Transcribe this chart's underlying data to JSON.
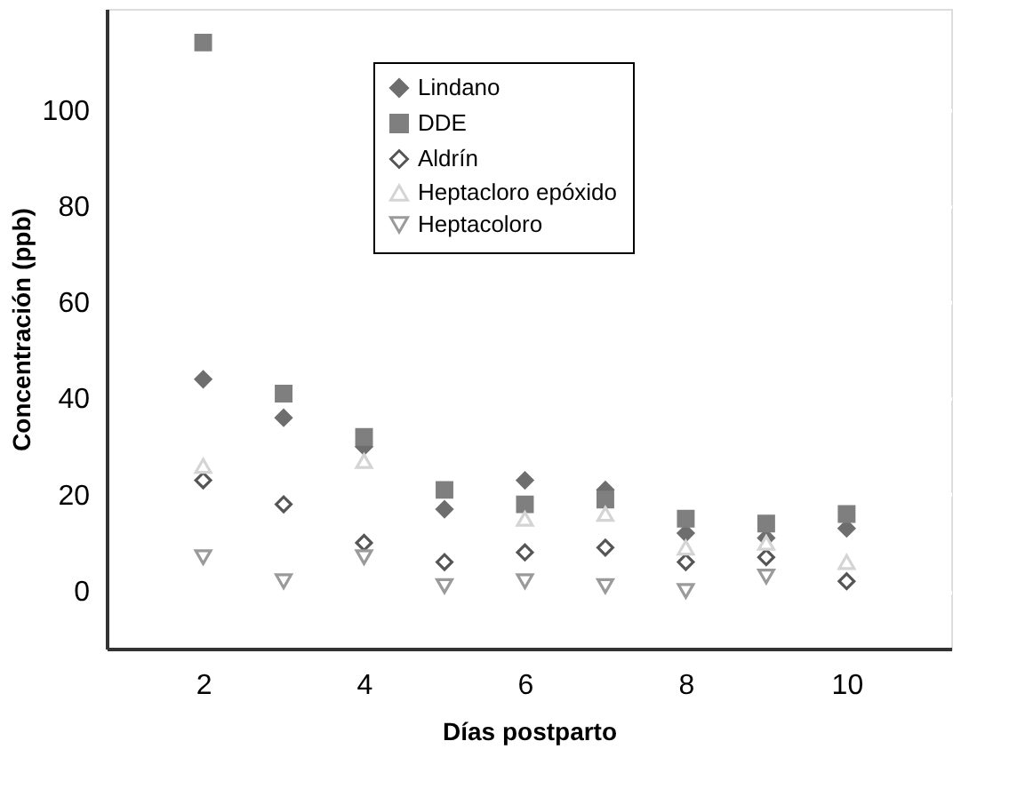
{
  "chart_data": {
    "type": "scatter",
    "xlabel": "Días postparto",
    "ylabel": "Concentración (ppb)",
    "x": [
      2,
      3,
      4,
      5,
      6,
      7,
      8,
      9,
      10
    ],
    "xlim": [
      0.8,
      11.3
    ],
    "xticks": [
      2,
      4,
      6,
      8,
      10
    ],
    "ylim": [
      -12,
      121
    ],
    "yticks": [
      0,
      20,
      40,
      60,
      80,
      100
    ],
    "grid": "y",
    "legend": "top",
    "series": [
      {
        "name": "Lindano",
        "color": "#6e6e6e",
        "marker": "diamond",
        "values": [
          44,
          36,
          30,
          17,
          23,
          21,
          12,
          11,
          13
        ]
      },
      {
        "name": "DDE",
        "color": "#7f7f7f",
        "marker": "square",
        "values": [
          114,
          41,
          32,
          21,
          18,
          19,
          15,
          14,
          16
        ]
      },
      {
        "name": "Aldrín",
        "color": "#555555",
        "marker": "diamond",
        "values": [
          23,
          18,
          10,
          6,
          8,
          9,
          6,
          7,
          2
        ]
      },
      {
        "name": "Heptacloro epóxido",
        "color": "#d4d4d4",
        "marker": "triangle",
        "values": [
          26,
          null,
          27,
          null,
          15,
          16,
          9,
          10,
          6
        ]
      },
      {
        "name": "Heptacoloro",
        "color": "#9a9a9a",
        "marker": "triangle-down",
        "values": [
          7,
          2,
          7,
          1,
          2,
          1,
          0,
          3,
          null
        ]
      }
    ]
  }
}
